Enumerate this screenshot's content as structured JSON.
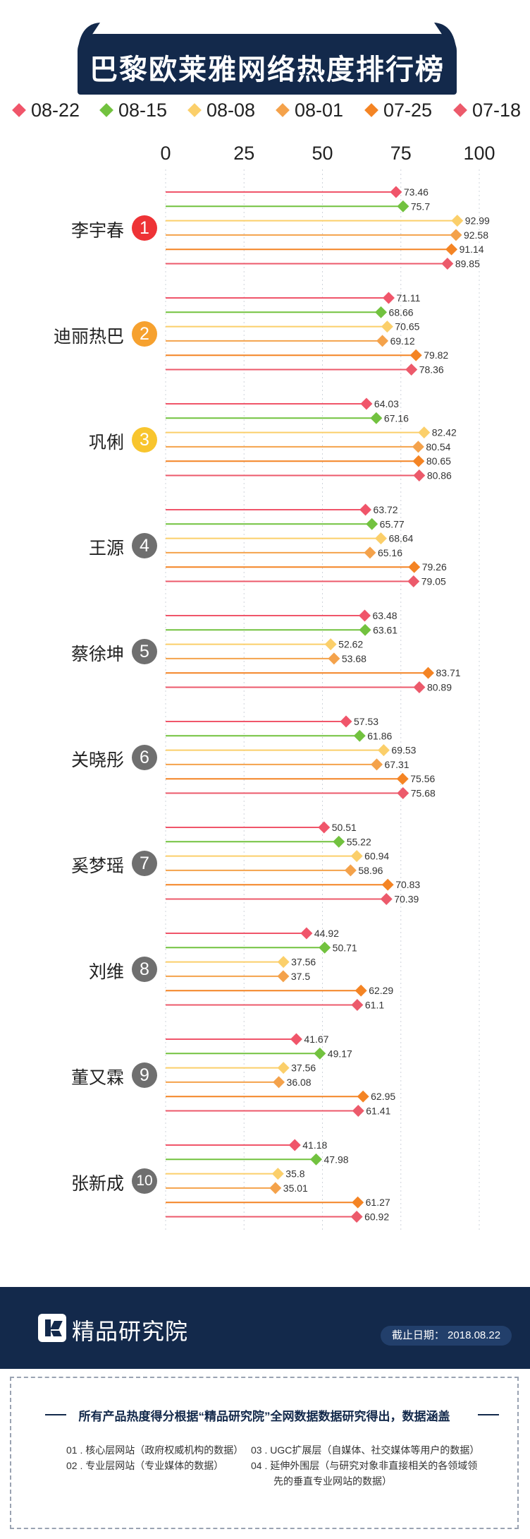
{
  "title": "巴黎欧莱雅网络热度排行榜",
  "legend": [
    {
      "label": "08-22",
      "color": "#f0556a"
    },
    {
      "label": "08-15",
      "color": "#72c23f"
    },
    {
      "label": "08-08",
      "color": "#fbcf6a"
    },
    {
      "label": "08-01",
      "color": "#f4a24b"
    },
    {
      "label": "07-25",
      "color": "#f48424"
    },
    {
      "label": "07-18",
      "color": "#ec5a6b"
    }
  ],
  "chart_data": {
    "type": "bar",
    "xlim": [
      0,
      100
    ],
    "x_ticks": [
      "0",
      "25",
      "50",
      "75",
      "100"
    ],
    "categories": [
      "李宇春",
      "迪丽热巴",
      "巩俐",
      "王源",
      "蔡徐坤",
      "关晓彤",
      "奚梦瑶",
      "刘维",
      "董又霖",
      "张新成"
    ],
    "ranks": [
      "1",
      "2",
      "3",
      "4",
      "5",
      "6",
      "7",
      "8",
      "9",
      "10"
    ],
    "series": [
      {
        "name": "08-22",
        "values": [
          73.46,
          71.11,
          64.03,
          63.72,
          63.48,
          57.53,
          50.51,
          44.92,
          41.67,
          41.18
        ]
      },
      {
        "name": "08-15",
        "values": [
          75.7,
          68.66,
          67.16,
          65.77,
          63.61,
          61.86,
          55.22,
          50.71,
          49.17,
          47.98
        ]
      },
      {
        "name": "08-08",
        "values": [
          92.99,
          70.65,
          82.42,
          68.64,
          52.62,
          69.53,
          60.94,
          37.56,
          37.56,
          35.8
        ]
      },
      {
        "name": "08-01",
        "values": [
          92.58,
          69.12,
          80.54,
          65.16,
          53.68,
          67.31,
          58.96,
          37.5,
          36.08,
          35.01
        ]
      },
      {
        "name": "07-25",
        "values": [
          91.14,
          79.82,
          80.65,
          79.26,
          83.71,
          75.56,
          70.83,
          62.29,
          62.95,
          61.27
        ]
      },
      {
        "name": "07-18",
        "values": [
          89.85,
          78.36,
          80.86,
          79.05,
          80.89,
          75.68,
          70.39,
          61.1,
          61.41,
          60.92
        ]
      }
    ],
    "grid": true,
    "legend_position": "top"
  },
  "badge_colors": {
    "first": "#ee3336",
    "second": "#f6a12f",
    "third": "#f8c52e",
    "other": "#6f6f6f"
  },
  "footer": {
    "logo_text": "精品研究院",
    "date_label": "截止日期：  2018.08.22"
  },
  "notes": {
    "main": "所有产品热度得分根据“精品研究院”全网数据数据研究得出，数据涵盖",
    "items": [
      "01 . 核心层网站（政府权威机构的数据）",
      "02 . 专业层网站（专业媒体的数据）",
      "03 . UGC扩展层（自媒体、社交媒体等用户的数据）",
      "04 . 延伸外围层（与研究对象非直接相关的各领域领",
      "先的垂直专业网站的数据）"
    ]
  }
}
